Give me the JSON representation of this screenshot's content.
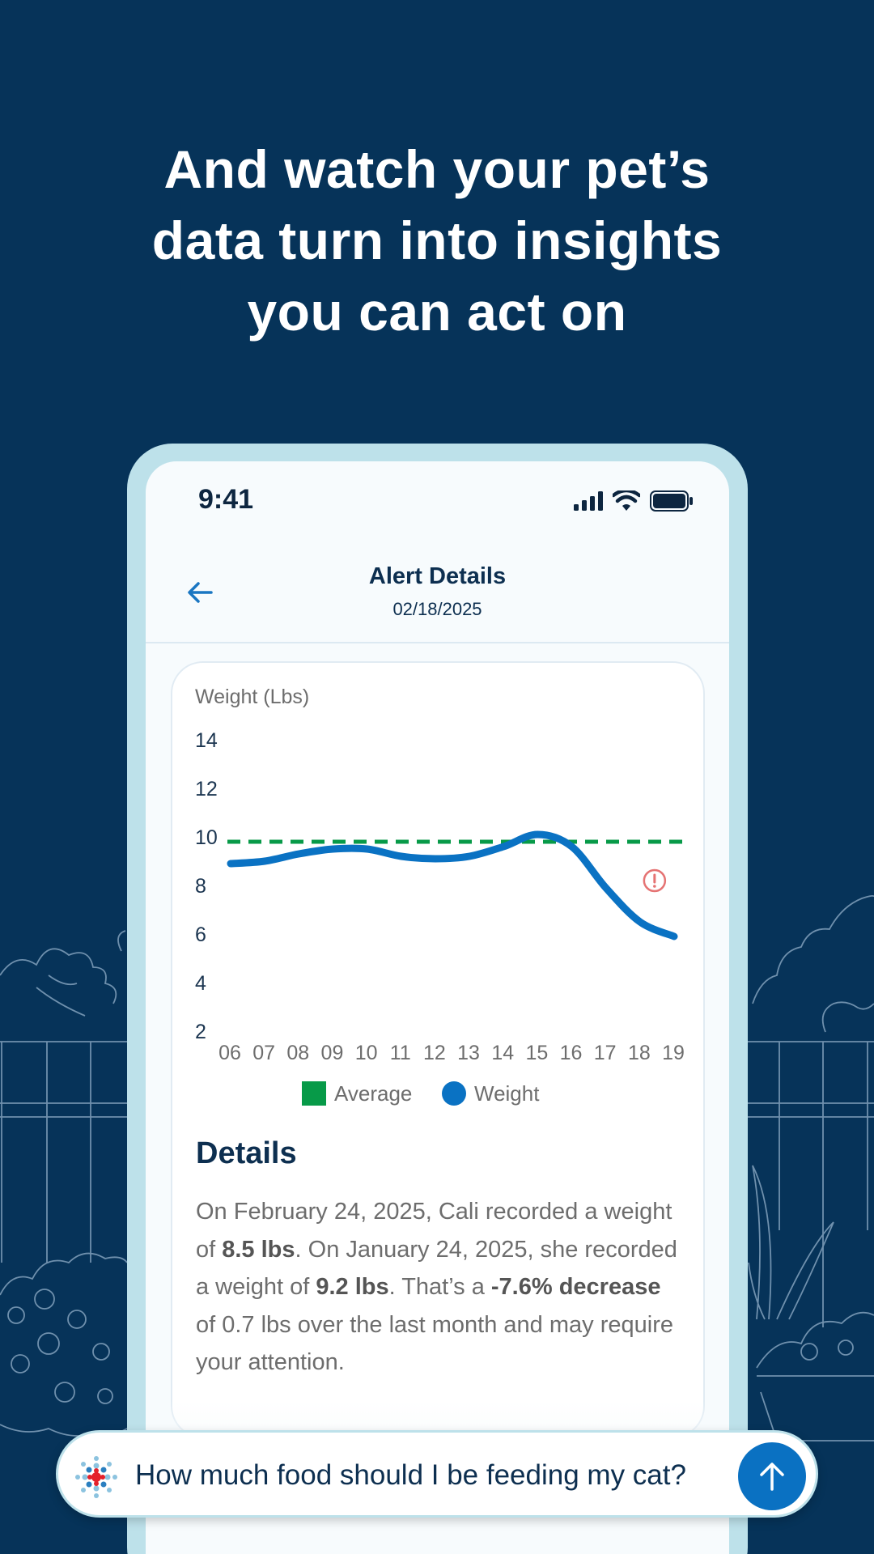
{
  "headline": {
    "line1": "And watch your pet’s",
    "line2": "data turn into insights",
    "line3": "you can act on"
  },
  "status_bar": {
    "time": "9:41"
  },
  "nav": {
    "title": "Alert Details",
    "date": "02/18/2025"
  },
  "colors": {
    "background": "#063359",
    "average": "#079a48",
    "weight": "#0a72c3",
    "alert": "#e57373",
    "send_button": "#0a71c2"
  },
  "chart_data": {
    "type": "line",
    "ylabel": "Weight (Lbs)",
    "yticks": [
      14,
      12,
      10,
      8,
      6,
      4,
      2
    ],
    "ylim": [
      2,
      14
    ],
    "categories": [
      "06",
      "07",
      "08",
      "09",
      "10",
      "11",
      "12",
      "13",
      "14",
      "15",
      "16",
      "17",
      "18",
      "19"
    ],
    "grid": false,
    "series": [
      {
        "name": "Average",
        "style": "dashed",
        "values": [
          9.8,
          9.8,
          9.8,
          9.8,
          9.8,
          9.8,
          9.8,
          9.8,
          9.8,
          9.8,
          9.8,
          9.8,
          9.8,
          9.8
        ]
      },
      {
        "name": "Weight",
        "style": "solid",
        "values": [
          8.9,
          9.0,
          9.3,
          9.5,
          9.5,
          9.2,
          9.1,
          9.2,
          9.6,
          10.1,
          9.6,
          7.9,
          6.5,
          5.9
        ]
      }
    ],
    "legend": {
      "placement": "bottom-center",
      "items": [
        "Average",
        "Weight"
      ]
    },
    "alert_marker": {
      "x": "18",
      "y": 8.2,
      "icon": "alert-icon"
    }
  },
  "details": {
    "title": "Details",
    "p1": "On February 24, 2025, Cali recorded a weight of ",
    "b1": "8.5 lbs",
    "p2": ". On January 24, 2025, she recorded a weight of ",
    "b2": "9.2 lbs",
    "p3": ". That’s a ",
    "b3": "-7.6% decrease",
    "p4": " of 0.7 lbs over the last month and may require your attention."
  },
  "chat": {
    "logo_icon": "ai-assistant-icon",
    "prompt": "How much food should I be feeding my cat?",
    "send_icon": "arrow-up-icon"
  }
}
